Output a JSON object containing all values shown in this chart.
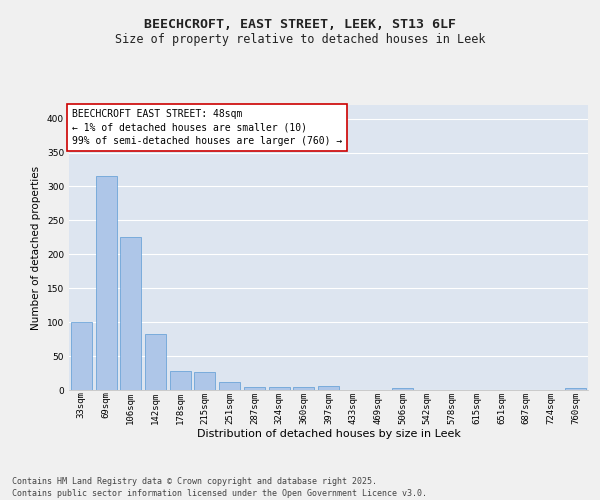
{
  "title": "BEECHCROFT, EAST STREET, LEEK, ST13 6LF",
  "subtitle": "Size of property relative to detached houses in Leek",
  "xlabel": "Distribution of detached houses by size in Leek",
  "ylabel": "Number of detached properties",
  "categories": [
    "33sqm",
    "69sqm",
    "106sqm",
    "142sqm",
    "178sqm",
    "215sqm",
    "251sqm",
    "287sqm",
    "324sqm",
    "360sqm",
    "397sqm",
    "433sqm",
    "469sqm",
    "506sqm",
    "542sqm",
    "578sqm",
    "615sqm",
    "651sqm",
    "687sqm",
    "724sqm",
    "760sqm"
  ],
  "values": [
    100,
    315,
    225,
    82,
    28,
    27,
    12,
    5,
    5,
    4,
    6,
    0,
    0,
    3,
    0,
    0,
    0,
    0,
    0,
    0,
    3
  ],
  "bar_color": "#aec6e8",
  "bar_edge_color": "#5b9bd5",
  "annotation_box_color": "#cc0000",
  "annotation_text": "BEECHCROFT EAST STREET: 48sqm\n← 1% of detached houses are smaller (10)\n99% of semi-detached houses are larger (760) →",
  "ylim": [
    0,
    420
  ],
  "yticks": [
    0,
    50,
    100,
    150,
    200,
    250,
    300,
    350,
    400
  ],
  "background_color": "#dde5f0",
  "grid_color": "#ffffff",
  "fig_background": "#f0f0f0",
  "footer": "Contains HM Land Registry data © Crown copyright and database right 2025.\nContains public sector information licensed under the Open Government Licence v3.0.",
  "title_fontsize": 9.5,
  "subtitle_fontsize": 8.5,
  "xlabel_fontsize": 8,
  "ylabel_fontsize": 7.5,
  "tick_fontsize": 6.5,
  "annotation_fontsize": 7,
  "footer_fontsize": 6
}
